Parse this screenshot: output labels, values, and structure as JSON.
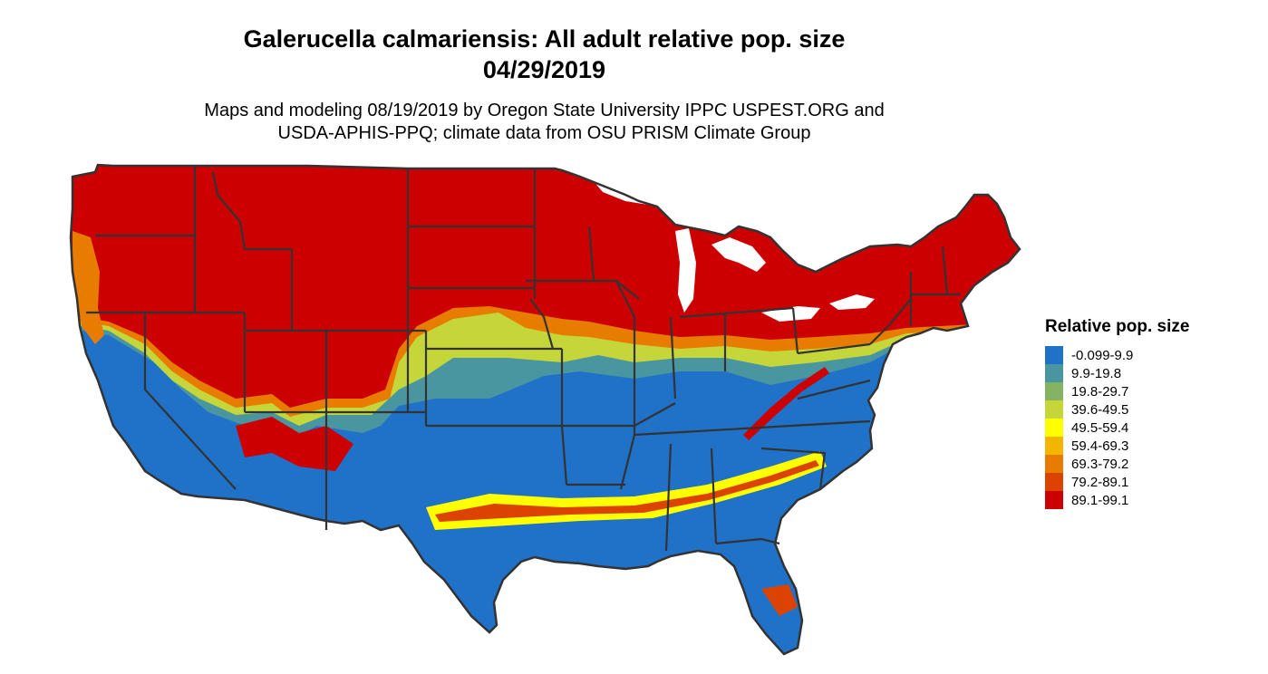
{
  "title_line1": "Galerucella calmariensis: All adult relative pop. size",
  "title_line2": "04/29/2019",
  "subtitle_line1": "Maps and modeling 08/19/2019 by Oregon State University IPPC USPEST.ORG and",
  "subtitle_line2": "USDA-APHIS-PPQ; climate data from OSU PRISM Climate Group",
  "legend": {
    "title": "Relative pop. size",
    "items": [
      {
        "label": "-0.099-9.9",
        "color": "#1f72c8"
      },
      {
        "label": "9.9-19.8",
        "color": "#4a96a0"
      },
      {
        "label": "19.8-29.7",
        "color": "#84b463"
      },
      {
        "label": "39.6-49.5",
        "color": "#c5d63a"
      },
      {
        "label": "49.5-59.4",
        "color": "#ffff00"
      },
      {
        "label": "59.4-69.3",
        "color": "#f2b600"
      },
      {
        "label": "69.3-79.2",
        "color": "#e87c00"
      },
      {
        "label": "79.2-89.1",
        "color": "#dc4200"
      },
      {
        "label": "89.1-99.1",
        "color": "#cc0000"
      }
    ]
  },
  "map": {
    "region": "contiguous United States",
    "boundary_color": "#333333",
    "zone_colors": {
      "north": "#cc0000",
      "transition_orange": "#e87c00",
      "transition_yellowgreen": "#c5d63a",
      "transition_teal": "#4a96a0",
      "south": "#1f72c8",
      "gulf_band_red": "#dc4200",
      "gulf_band_yellow": "#ffff00"
    }
  }
}
